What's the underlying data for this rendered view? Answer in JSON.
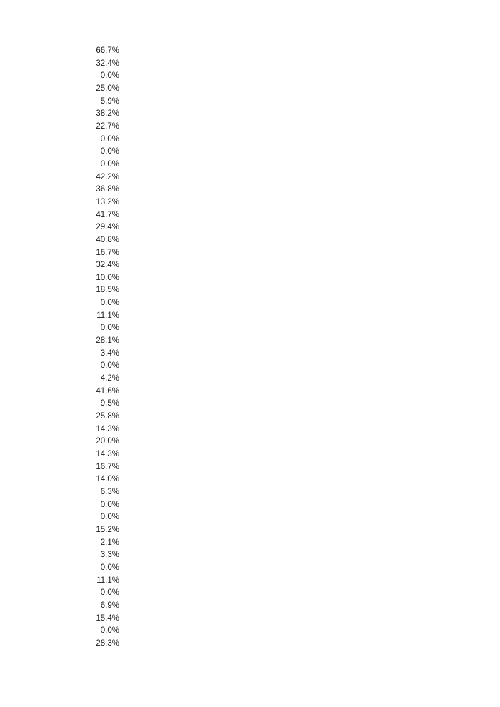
{
  "page": {
    "background_color": "#ffffff",
    "text_color": "#1b1b1b"
  },
  "percent_column": {
    "values": [
      "66.7%",
      "32.4%",
      "0.0%",
      "25.0%",
      "5.9%",
      "38.2%",
      "22.7%",
      "0.0%",
      "0.0%",
      "0.0%",
      "42.2%",
      "36.8%",
      "13.2%",
      "41.7%",
      "29.4%",
      "40.8%",
      "16.7%",
      "32.4%",
      "10.0%",
      "18.5%",
      "0.0%",
      "11.1%",
      "0.0%",
      "28.1%",
      "3.4%",
      "0.0%",
      "4.2%",
      "41.6%",
      "9.5%",
      "25.8%",
      "14.3%",
      "20.0%",
      "14.3%",
      "16.7%",
      "14.0%",
      "6.3%",
      "0.0%",
      "0.0%",
      "15.2%",
      "2.1%",
      "3.3%",
      "0.0%",
      "11.1%",
      "0.0%",
      "6.9%",
      "15.4%",
      "0.0%",
      "28.3%"
    ]
  }
}
